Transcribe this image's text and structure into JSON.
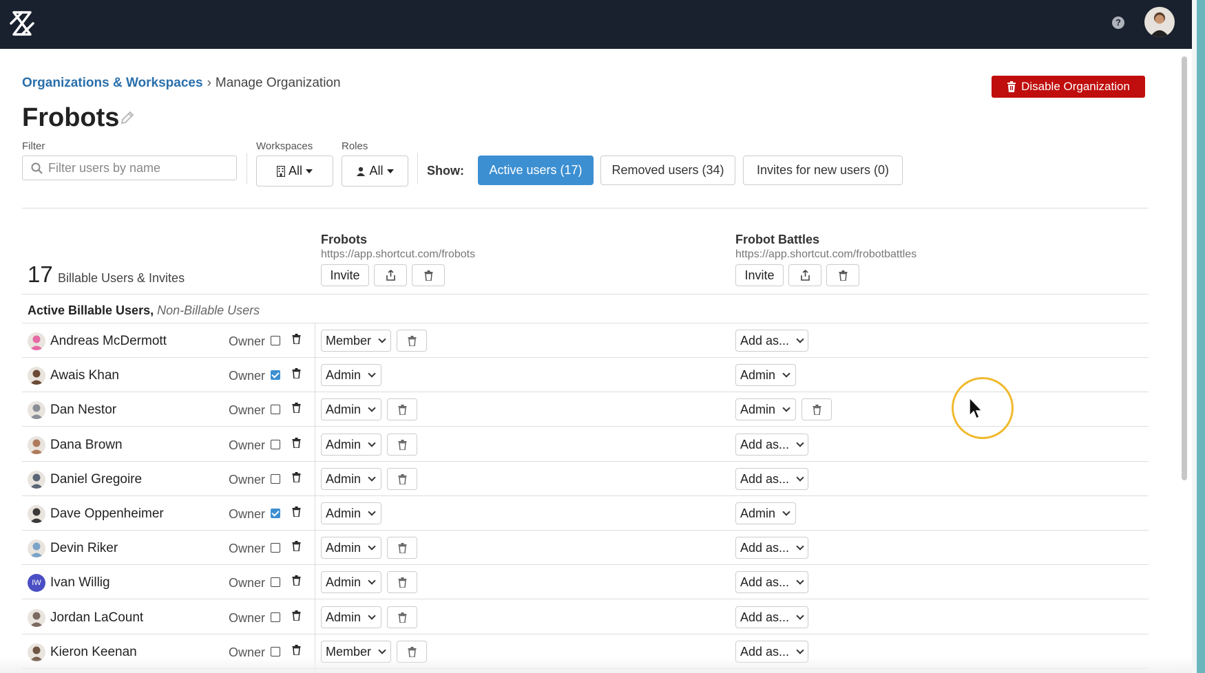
{
  "breadcrumb": {
    "link": "Organizations & Workspaces",
    "separator": "›",
    "current": "Manage Organization"
  },
  "actions": {
    "disable_org": "Disable Organization"
  },
  "org": {
    "name": "Frobots"
  },
  "filters": {
    "filter_label": "Filter",
    "filter_placeholder": "Filter users by name",
    "workspaces_label": "Workspaces",
    "workspaces_value": "All",
    "roles_label": "Roles",
    "roles_value": "All",
    "show_label": "Show:"
  },
  "tabs": [
    {
      "label": "Active users (17)",
      "active": true
    },
    {
      "label": "Removed users (34)",
      "active": false
    },
    {
      "label": "Invites for new users (0)",
      "active": false
    }
  ],
  "summary": {
    "count": "17",
    "label": "Billable Users & Invites"
  },
  "workspaces": [
    {
      "name": "Frobots",
      "url": "https://app.shortcut.com/frobots",
      "invite_label": "Invite"
    },
    {
      "name": "Frobot Battles",
      "url": "https://app.shortcut.com/frobotbattles",
      "invite_label": "Invite"
    }
  ],
  "section": {
    "billable": "Active Billable Users,",
    "non_billable": "Non-Billable Users"
  },
  "owner_label": "Owner",
  "users": [
    {
      "name": "Andreas McDermott",
      "owner": false,
      "ws1_role": "Member",
      "ws1_removable": true,
      "ws2_role": "Add as...",
      "ws2_removable": false,
      "avatar_color": "#e66aa6"
    },
    {
      "name": "Awais Khan",
      "owner": true,
      "ws1_role": "Admin",
      "ws1_removable": false,
      "ws2_role": "Admin",
      "ws2_removable": false,
      "avatar_color": "#6b4a36"
    },
    {
      "name": "Dan Nestor",
      "owner": false,
      "ws1_role": "Admin",
      "ws1_removable": true,
      "ws2_role": "Admin",
      "ws2_removable": true,
      "avatar_color": "#8a8f96"
    },
    {
      "name": "Dana Brown",
      "owner": false,
      "ws1_role": "Admin",
      "ws1_removable": true,
      "ws2_role": "Add as...",
      "ws2_removable": false,
      "avatar_color": "#b07a5c"
    },
    {
      "name": "Daniel Gregoire",
      "owner": false,
      "ws1_role": "Admin",
      "ws1_removable": true,
      "ws2_role": "Add as...",
      "ws2_removable": false,
      "avatar_color": "#5a6675"
    },
    {
      "name": "Dave Oppenheimer",
      "owner": true,
      "ws1_role": "Admin",
      "ws1_removable": false,
      "ws2_role": "Admin",
      "ws2_removable": false,
      "avatar_color": "#3c3a38"
    },
    {
      "name": "Devin Riker",
      "owner": false,
      "ws1_role": "Admin",
      "ws1_removable": true,
      "ws2_role": "Add as...",
      "ws2_removable": false,
      "avatar_color": "#7aa4c8"
    },
    {
      "name": "Ivan Willig",
      "owner": false,
      "ws1_role": "Admin",
      "ws1_removable": true,
      "ws2_role": "Add as...",
      "ws2_removable": false,
      "avatar_color": "#4b4fc4",
      "initials": "IW"
    },
    {
      "name": "Jordan LaCount",
      "owner": false,
      "ws1_role": "Admin",
      "ws1_removable": true,
      "ws2_role": "Add as...",
      "ws2_removable": false,
      "avatar_color": "#7c6a62"
    },
    {
      "name": "Kieron Keenan",
      "owner": false,
      "ws1_role": "Member",
      "ws1_removable": true,
      "ws2_role": "Add as...",
      "ws2_removable": false,
      "avatar_color": "#6f5645"
    }
  ],
  "colors": {
    "topbar": "#19202e",
    "link": "#2a6fab",
    "danger": "#c00d0d",
    "active_tab": "#3c8fd1",
    "highlight": "#f1b92c"
  }
}
